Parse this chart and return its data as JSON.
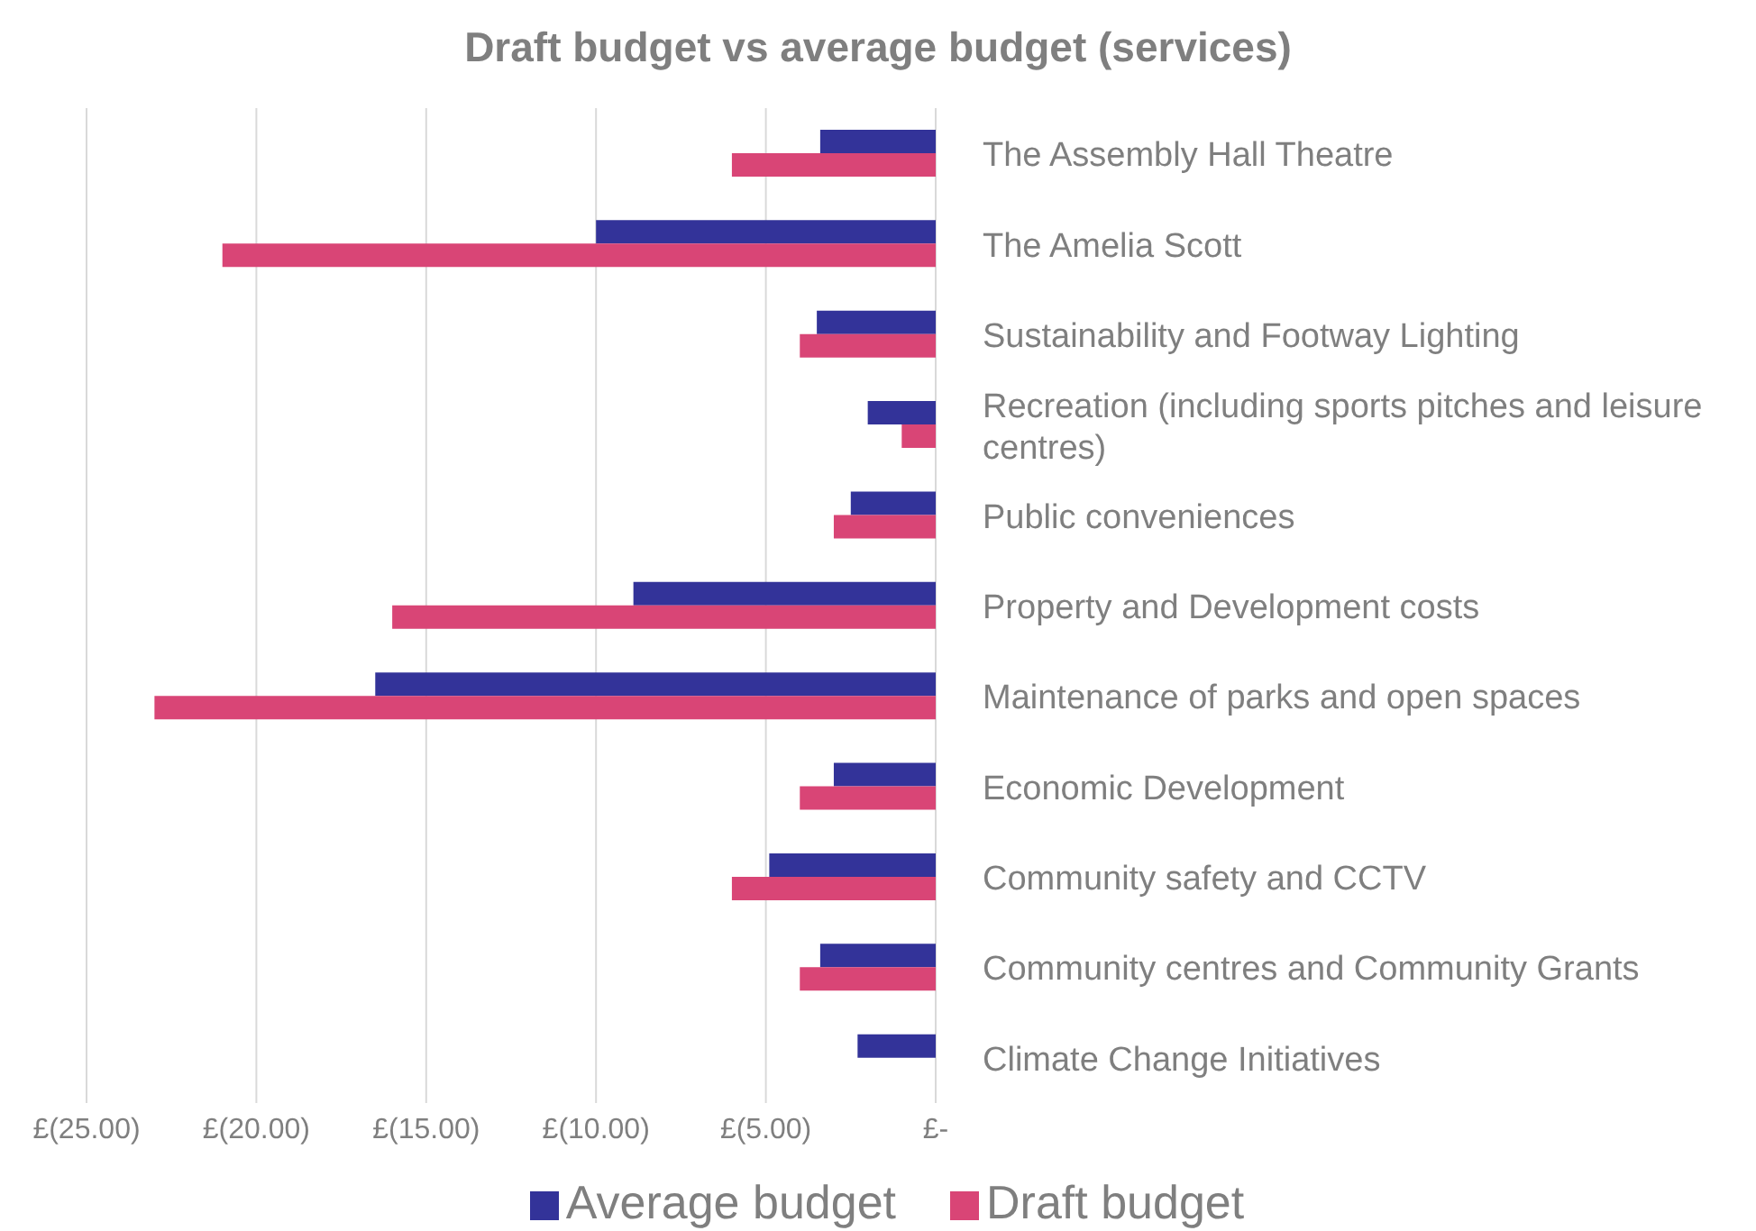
{
  "chart_data": {
    "type": "bar",
    "orientation": "horizontal",
    "title": "Draft budget vs average budget (services)",
    "categories": [
      "The Assembly Hall Theatre",
      "The Amelia Scott",
      "Sustainability and Footway Lighting",
      "Recreation (including sports pitches and leisure centres)",
      "Public conveniences",
      "Property and Development costs",
      "Maintenance of parks and open spaces",
      "Economic Development",
      "Community safety and CCTV",
      "Community centres and Community Grants",
      "Climate Change Initiatives"
    ],
    "series": [
      {
        "name": "Average budget",
        "color": "#333399",
        "values": [
          -3.4,
          -10.0,
          -3.5,
          -2.0,
          -2.5,
          -8.9,
          -16.5,
          -3.0,
          -4.9,
          -3.4,
          -2.3
        ]
      },
      {
        "name": "Draft budget",
        "color": "#d94576",
        "values": [
          -6.0,
          -21.0,
          -4.0,
          -1.0,
          -3.0,
          -16.0,
          -23.0,
          -4.0,
          -6.0,
          -4.0,
          null
        ]
      }
    ],
    "xlim": [
      -25,
      0
    ],
    "xticks": [
      {
        "value": -25,
        "label": "£(25.00)"
      },
      {
        "value": -20,
        "label": "£(20.00)"
      },
      {
        "value": -15,
        "label": "£(15.00)"
      },
      {
        "value": -10,
        "label": "£(10.00)"
      },
      {
        "value": -5,
        "label": "£(5.00)"
      },
      {
        "value": 0,
        "label": "£-"
      }
    ],
    "grid": "x",
    "legend": "bottom"
  }
}
